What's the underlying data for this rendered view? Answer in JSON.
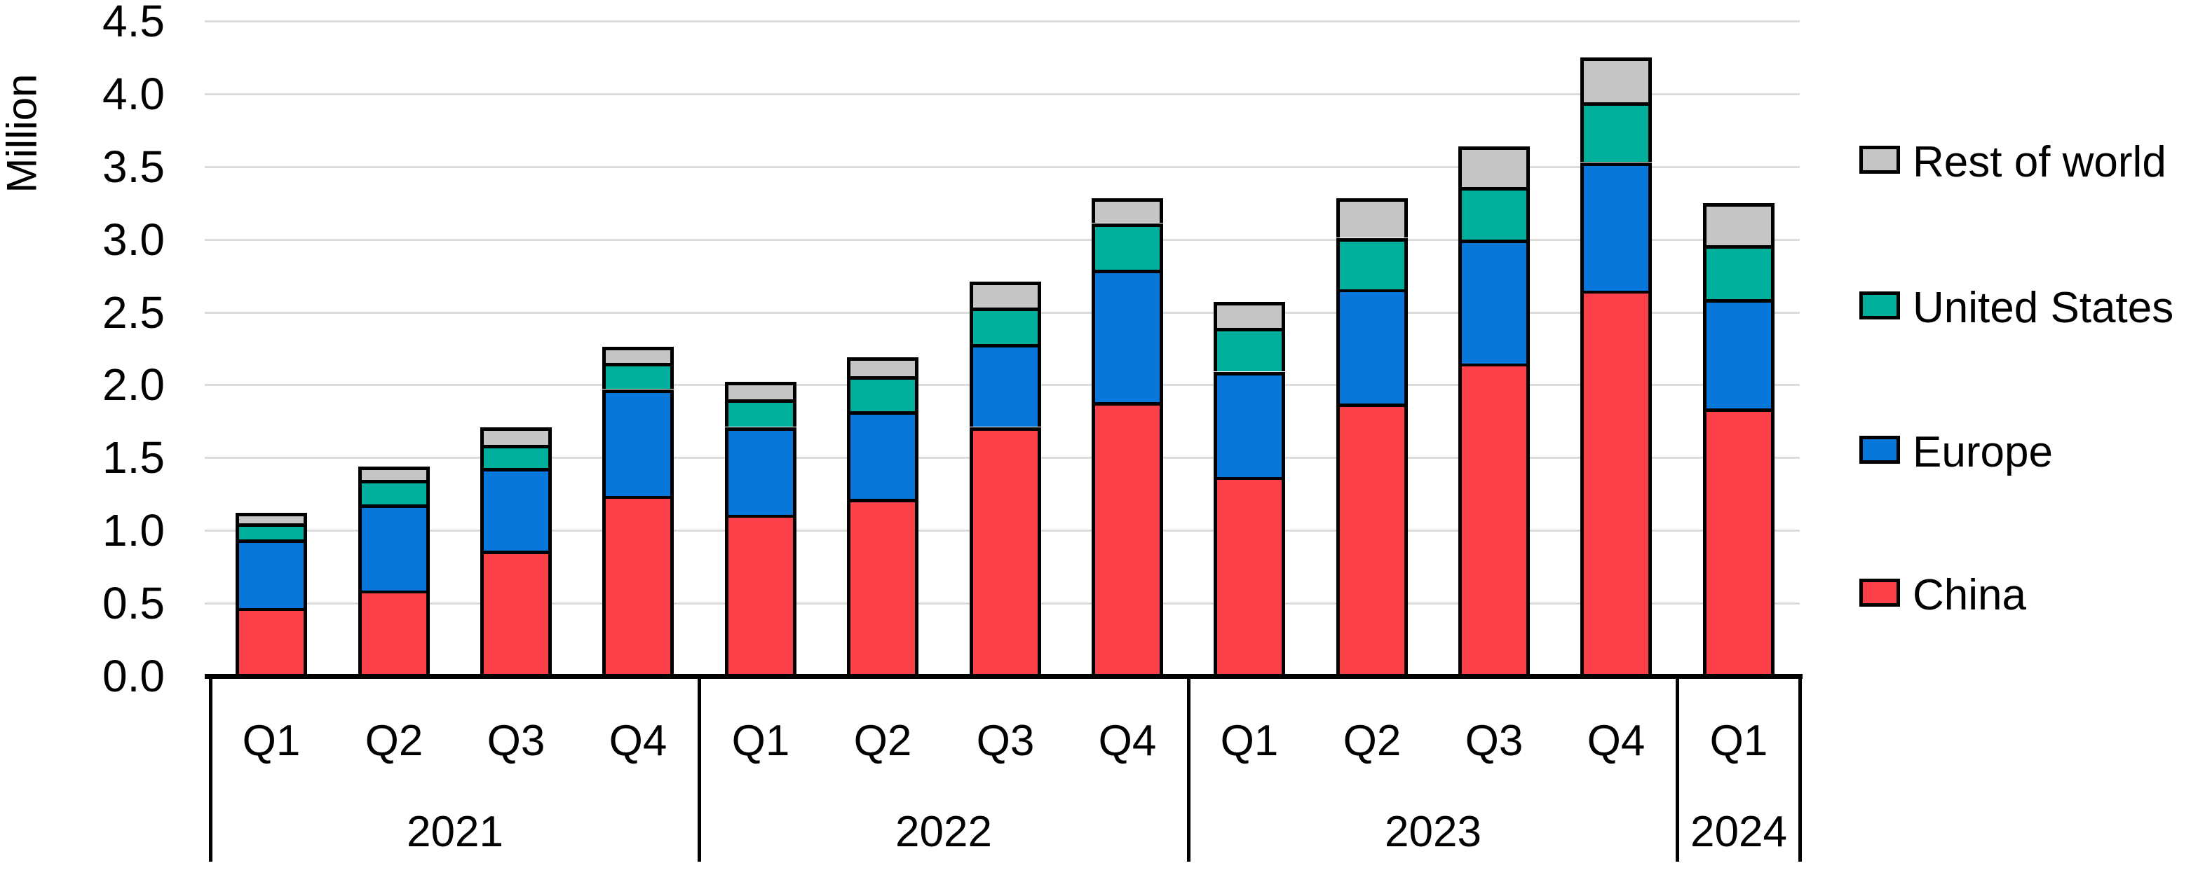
{
  "y_axis": {
    "label": "Million",
    "ticks": [
      "0.0",
      "0.5",
      "1.0",
      "1.5",
      "2.0",
      "2.5",
      "3.0",
      "3.5",
      "4.0",
      "4.5"
    ],
    "max": 4.5,
    "step": 0.5
  },
  "legend": {
    "position": "right",
    "items": [
      {
        "label": "Rest of world",
        "color": "#c5c5c5"
      },
      {
        "label": "United States",
        "color": "#00ae9c"
      },
      {
        "label": "Europe",
        "color": "#0877d9"
      },
      {
        "label": "China",
        "color": "#fb4049"
      }
    ]
  },
  "chart_data": {
    "type": "bar",
    "stacked": true,
    "title": "",
    "xlabel": "",
    "ylabel": "Million",
    "ylim": [
      0,
      4.5
    ],
    "grid": true,
    "legend_position": "right",
    "groups": [
      {
        "year": "2021",
        "quarters": [
          "Q1",
          "Q2",
          "Q3",
          "Q4"
        ]
      },
      {
        "year": "2022",
        "quarters": [
          "Q1",
          "Q2",
          "Q3",
          "Q4"
        ]
      },
      {
        "year": "2023",
        "quarters": [
          "Q1",
          "Q2",
          "Q3",
          "Q4"
        ]
      },
      {
        "year": "2024",
        "quarters": [
          "Q1"
        ]
      }
    ],
    "series": [
      {
        "name": "China",
        "color": "#fb4049",
        "values": [
          0.47,
          0.59,
          0.86,
          1.24,
          1.11,
          1.22,
          1.71,
          1.88,
          1.37,
          1.87,
          2.15,
          2.65,
          1.84
        ]
      },
      {
        "name": "Europe",
        "color": "#0877d9",
        "values": [
          0.47,
          0.59,
          0.57,
          0.73,
          0.6,
          0.6,
          0.57,
          0.91,
          0.72,
          0.79,
          0.85,
          0.88,
          0.75
        ]
      },
      {
        "name": "United States",
        "color": "#00ae9c",
        "values": [
          0.11,
          0.17,
          0.16,
          0.18,
          0.19,
          0.24,
          0.25,
          0.32,
          0.3,
          0.35,
          0.36,
          0.41,
          0.37
        ]
      },
      {
        "name": "Rest of world",
        "color": "#c5c5c5",
        "values": [
          0.07,
          0.09,
          0.12,
          0.11,
          0.12,
          0.13,
          0.18,
          0.17,
          0.18,
          0.27,
          0.28,
          0.31,
          0.29
        ]
      }
    ],
    "totals": [
      1.12,
      1.44,
      1.71,
      2.26,
      2.02,
      2.19,
      2.71,
      3.28,
      2.57,
      3.28,
      3.64,
      4.25,
      3.25
    ]
  }
}
